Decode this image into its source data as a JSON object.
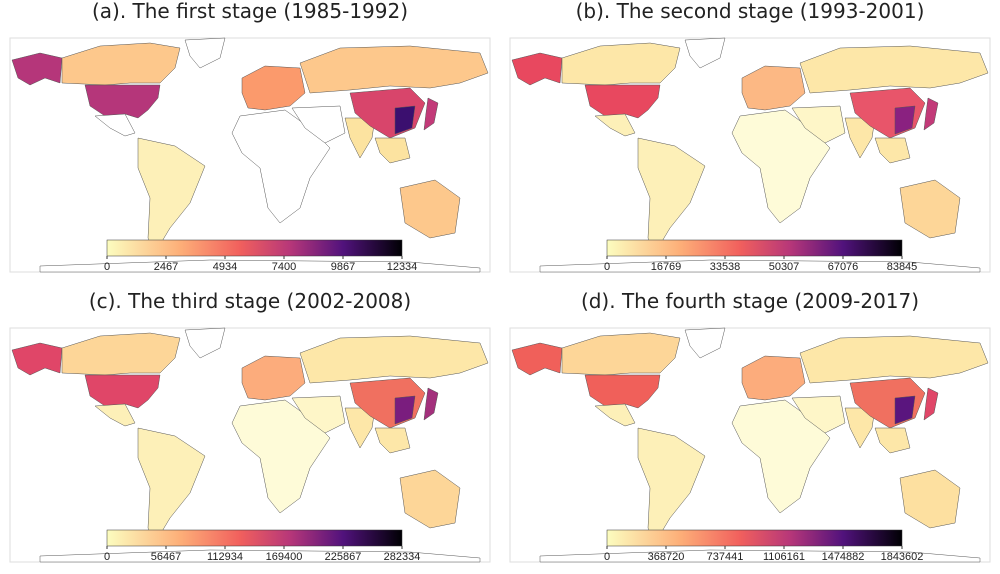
{
  "panels": [
    {
      "title": "(a). The first stage (1985-1992)",
      "colorbar": {
        "range": [
          0,
          12334
        ],
        "ticks": [
          0,
          2467,
          4934,
          7400,
          9867,
          12334
        ]
      }
    },
    {
      "title": "(b). The second stage (1993-2001)",
      "colorbar": {
        "range": [
          0,
          83845
        ],
        "ticks": [
          0,
          16769,
          33538,
          50307,
          67076,
          83845
        ]
      }
    },
    {
      "title": "(c). The third stage (2002-2008)",
      "colorbar": {
        "range": [
          0,
          282334
        ],
        "ticks": [
          0,
          56467,
          112934,
          169400,
          225867,
          282334
        ]
      }
    },
    {
      "title": "(d). The fourth stage (2009-2017)",
      "colorbar": {
        "range": [
          0,
          1843602
        ],
        "ticks": [
          0,
          368720,
          737441,
          1106161,
          1474882,
          1843602
        ]
      }
    }
  ]
}
